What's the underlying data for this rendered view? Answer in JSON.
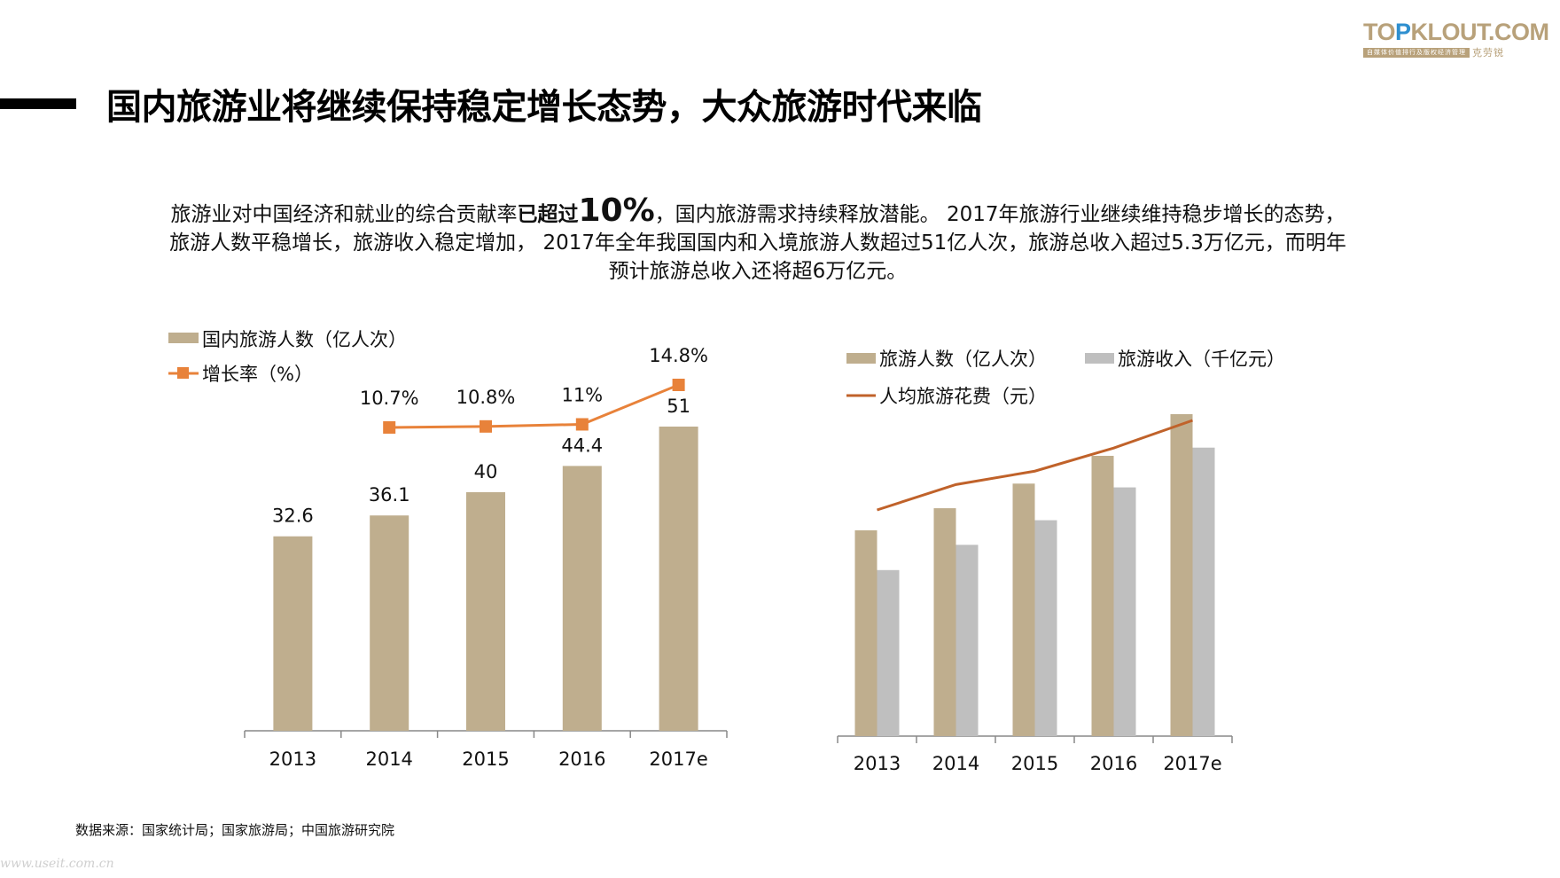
{
  "logo": {
    "brand_prefix": "TO",
    "brand_accent": "P",
    "brand_rest": "KLOUT.COM",
    "tagline": "自媒体价值排行及版权经济管理",
    "cn_name": "克劳锐"
  },
  "header": {
    "title": "国内旅游业将继续保持稳定增长态势，大众旅游时代来临"
  },
  "intro": {
    "part1": "旅游业对中国经济和就业的综合贡献率",
    "strong": "已超过",
    "big": "10%",
    "part2": "，国内旅游需求持续释放潜能。 2017年旅游行业继续维持稳步增长的态势，旅游人数平稳增长，旅游收入稳定增加， 2017年全年我国国内和入境旅游人数超过51亿人次，旅游总收入超过5.3万亿元，而明年预计旅游总收入还将超6万亿元。"
  },
  "colors": {
    "tan": "#bfae8e",
    "gray": "#bfbfbf",
    "orange": "#e8823a",
    "rust": "#c0622a",
    "axis": "#888888"
  },
  "chart_data": [
    {
      "type": "bar",
      "title": "",
      "categories": [
        "2013",
        "2014",
        "2015",
        "2016",
        "2017e"
      ],
      "series": [
        {
          "name": "国内旅游人数（亿人次）",
          "kind": "bar",
          "values": [
            32.6,
            36.1,
            40,
            44.4,
            51
          ],
          "labels": [
            "32.6",
            "36.1",
            "40",
            "44.4",
            "51"
          ]
        },
        {
          "name": "增长率（%）",
          "kind": "line",
          "marker": "square",
          "categories": [
            "2014",
            "2015",
            "2016",
            "2017e"
          ],
          "values": [
            10.7,
            10.8,
            11,
            14.8
          ],
          "labels": [
            "10.7%",
            "10.8%",
            "11%",
            "14.8%"
          ]
        }
      ],
      "xlabel": "",
      "ylabel": "",
      "ylim": [
        0,
        51
      ],
      "y2lim": [
        0,
        14.8
      ],
      "grid": false,
      "legend": "top-left"
    },
    {
      "type": "bar",
      "title": "",
      "categories": [
        "2013",
        "2014",
        "2015",
        "2016",
        "2017e"
      ],
      "series": [
        {
          "name": "旅游人数（亿人次）",
          "kind": "bar",
          "values": [
            32.6,
            36.1,
            40,
            44.4,
            51
          ]
        },
        {
          "name": "旅游收入（千亿元）",
          "kind": "bar",
          "values": [
            26.3,
            30.3,
            34.2,
            39.4,
            45.7
          ]
        },
        {
          "name": "人均旅游花费（元）",
          "kind": "line",
          "values": [
            805,
            839,
            857,
            888,
            925
          ]
        }
      ],
      "xlabel": "",
      "ylabel": "",
      "ylim": [
        0,
        51
      ],
      "grid": false,
      "legend": "top-left"
    }
  ],
  "footer": {
    "source": "数据来源：国家统计局；国家旅游局；中国旅游研究院",
    "watermark": "www.useit.com.cn"
  }
}
